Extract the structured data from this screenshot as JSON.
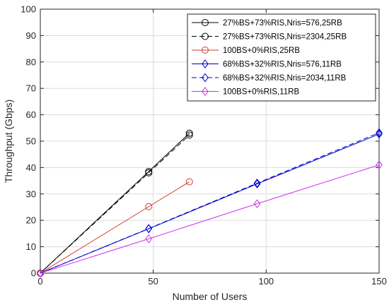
{
  "chart_data": {
    "type": "line",
    "title": "",
    "xlabel": "Number of Users",
    "ylabel": "Throughput (Gbps)",
    "xlim": [
      0,
      150
    ],
    "ylim": [
      0,
      100
    ],
    "xticks": [
      0,
      50,
      100,
      150
    ],
    "yticks": [
      0,
      10,
      20,
      30,
      40,
      50,
      60,
      70,
      80,
      90,
      100
    ],
    "grid": true,
    "legend_position": "top-right",
    "series": [
      {
        "name": "27%BS+73%RIS,Nris=576,25RB",
        "color": "#000000",
        "dash": "solid",
        "marker": "circle",
        "x": [
          0,
          48,
          66
        ],
        "y": [
          0,
          38.5,
          53
        ]
      },
      {
        "name": "27%BS+73%RIS,Nris=2304,25RB",
        "color": "#000000",
        "dash": "dashed",
        "marker": "circle",
        "x": [
          0,
          48,
          66
        ],
        "y": [
          0,
          38,
          52.3
        ]
      },
      {
        "name": "100BS+0%RIS,25RB",
        "color": "#d23c2c",
        "dash": "solid",
        "marker": "circle",
        "x": [
          0,
          48,
          66
        ],
        "y": [
          0,
          25.2,
          34.6
        ]
      },
      {
        "name": "68%BS+32%RIS,Nris=576,11RB",
        "color": "#0000cc",
        "dash": "solid",
        "marker": "diamond",
        "x": [
          0,
          48,
          96,
          150
        ],
        "y": [
          0,
          16.8,
          33.8,
          52.7
        ]
      },
      {
        "name": "68%BS+32%RIS,Nris=2034,11RB",
        "color": "#0000cc",
        "dash": "dashed",
        "marker": "diamond",
        "x": [
          0,
          48,
          96,
          150
        ],
        "y": [
          0,
          16.9,
          34.1,
          53.2
        ]
      },
      {
        "name": "100BS+0%RIS,11RB",
        "color": "#cc33ee",
        "dash": "solid",
        "marker": "diamond",
        "x": [
          0,
          48,
          96,
          150
        ],
        "y": [
          0,
          13,
          26.3,
          41
        ]
      }
    ]
  }
}
